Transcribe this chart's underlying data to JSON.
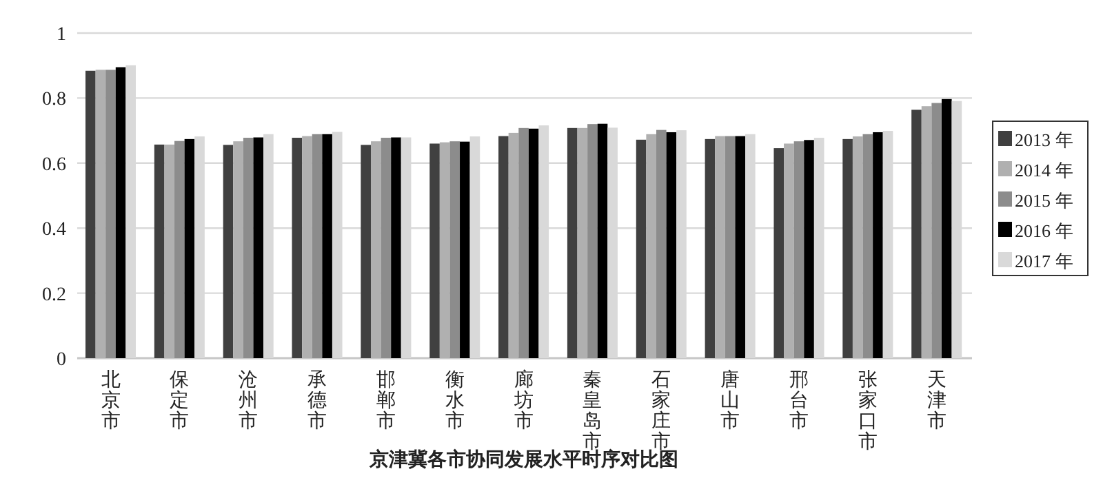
{
  "chart_data": {
    "type": "bar",
    "title": "京津冀各市协同发展水平时序对比图",
    "categories": [
      "北京市",
      "保定市",
      "沧州市",
      "承德市",
      "邯郸市",
      "衡水市",
      "廊坊市",
      "秦皇岛市",
      "石家庄市",
      "唐山市",
      "邢台市",
      "张家口市",
      "天津市"
    ],
    "series": [
      {
        "name": "2013 年",
        "color": "#404040",
        "values": [
          0.884,
          0.657,
          0.656,
          0.678,
          0.656,
          0.66,
          0.683,
          0.708,
          0.672,
          0.674,
          0.646,
          0.674,
          0.764
        ]
      },
      {
        "name": "2014 年",
        "color": "#b0b0b0",
        "values": [
          0.887,
          0.657,
          0.667,
          0.683,
          0.667,
          0.664,
          0.693,
          0.708,
          0.689,
          0.683,
          0.66,
          0.682,
          0.775
        ]
      },
      {
        "name": "2015 年",
        "color": "#8c8c8c",
        "values": [
          0.887,
          0.668,
          0.678,
          0.689,
          0.678,
          0.667,
          0.708,
          0.72,
          0.702,
          0.683,
          0.667,
          0.689,
          0.785
        ]
      },
      {
        "name": "2016 年",
        "color": "#000000",
        "values": [
          0.895,
          0.674,
          0.679,
          0.689,
          0.679,
          0.666,
          0.706,
          0.721,
          0.695,
          0.683,
          0.671,
          0.695,
          0.797
        ]
      },
      {
        "name": "2017 年",
        "color": "#d9d9d9",
        "values": [
          0.901,
          0.682,
          0.689,
          0.696,
          0.679,
          0.682,
          0.716,
          0.709,
          0.701,
          0.689,
          0.678,
          0.699,
          0.791
        ]
      }
    ],
    "ylim": [
      0,
      1
    ],
    "yticks": [
      0,
      0.2,
      0.4,
      0.6,
      0.8,
      1
    ],
    "grid": "y",
    "legend": "right"
  }
}
